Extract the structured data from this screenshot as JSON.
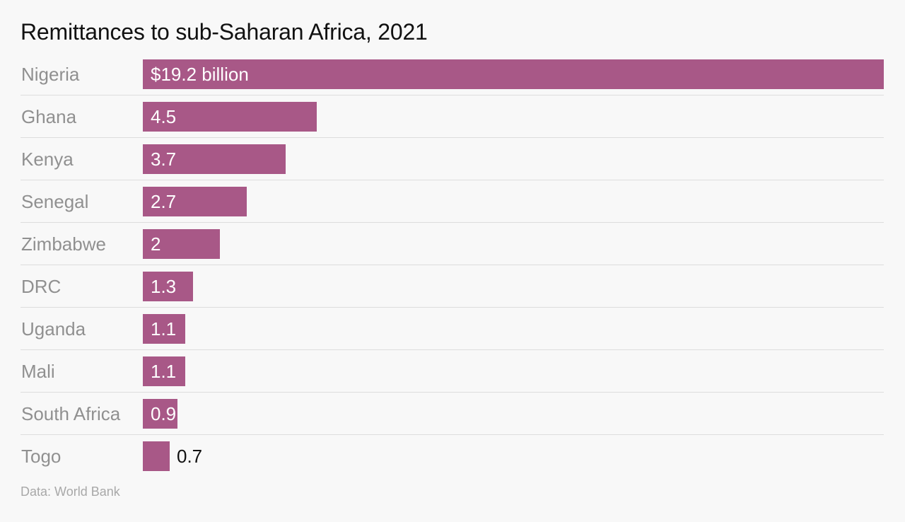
{
  "chart_data": {
    "type": "bar",
    "orientation": "horizontal",
    "title": "Remittances to sub-Saharan Africa, 2021",
    "categories": [
      "Nigeria",
      "Ghana",
      "Kenya",
      "Senegal",
      "Zimbabwe",
      "DRC",
      "Uganda",
      "Mali",
      "South Africa",
      "Togo"
    ],
    "values": [
      19.2,
      4.5,
      3.7,
      2.7,
      2,
      1.3,
      1.1,
      1.1,
      0.9,
      0.7
    ],
    "value_labels": [
      "$19.2 billion",
      "4.5",
      "3.7",
      "2.7",
      "2",
      "1.3",
      "1.1",
      "1.1",
      "0.9",
      "0.7"
    ],
    "unit": "billion US dollars",
    "xlim": [
      0,
      19.2
    ],
    "bar_color": "#a85887",
    "grid": false,
    "source": "Data: World Bank"
  }
}
